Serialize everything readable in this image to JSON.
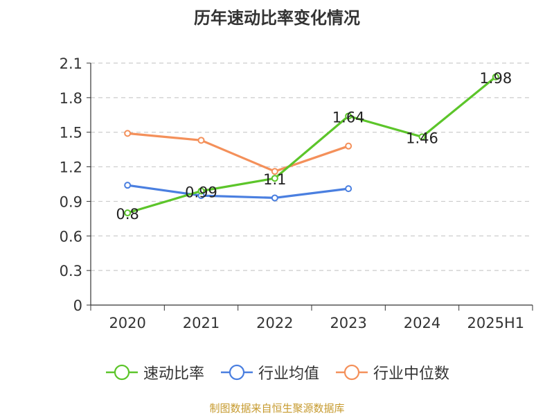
{
  "chart_data": {
    "type": "line",
    "title": "历年速动比率变化情况",
    "categories": [
      "2020",
      "2021",
      "2022",
      "2023",
      "2024",
      "2025H1"
    ],
    "y_ticks": [
      "0",
      "0.3",
      "0.6",
      "0.9",
      "1.2",
      "1.5",
      "1.8",
      "2.1"
    ],
    "ylim": [
      0,
      2.1
    ],
    "grid": true,
    "legend_position": "bottom",
    "series": [
      {
        "name": "速动比率",
        "color": "#5cc52a",
        "values": [
          0.8,
          0.99,
          1.1,
          1.64,
          1.46,
          1.98
        ],
        "labels": [
          "0.8",
          "0.99",
          "1.1",
          "1.64",
          "1.46",
          "1.98"
        ]
      },
      {
        "name": "行业均值",
        "color": "#4a7fe0",
        "values": [
          1.04,
          0.95,
          0.93,
          1.01,
          null,
          null
        ]
      },
      {
        "name": "行业中位数",
        "color": "#f4905a",
        "values": [
          1.49,
          1.43,
          1.16,
          1.38,
          null,
          null
        ]
      }
    ]
  },
  "footer": {
    "source": "制图数据来自恒生聚源数据库"
  }
}
